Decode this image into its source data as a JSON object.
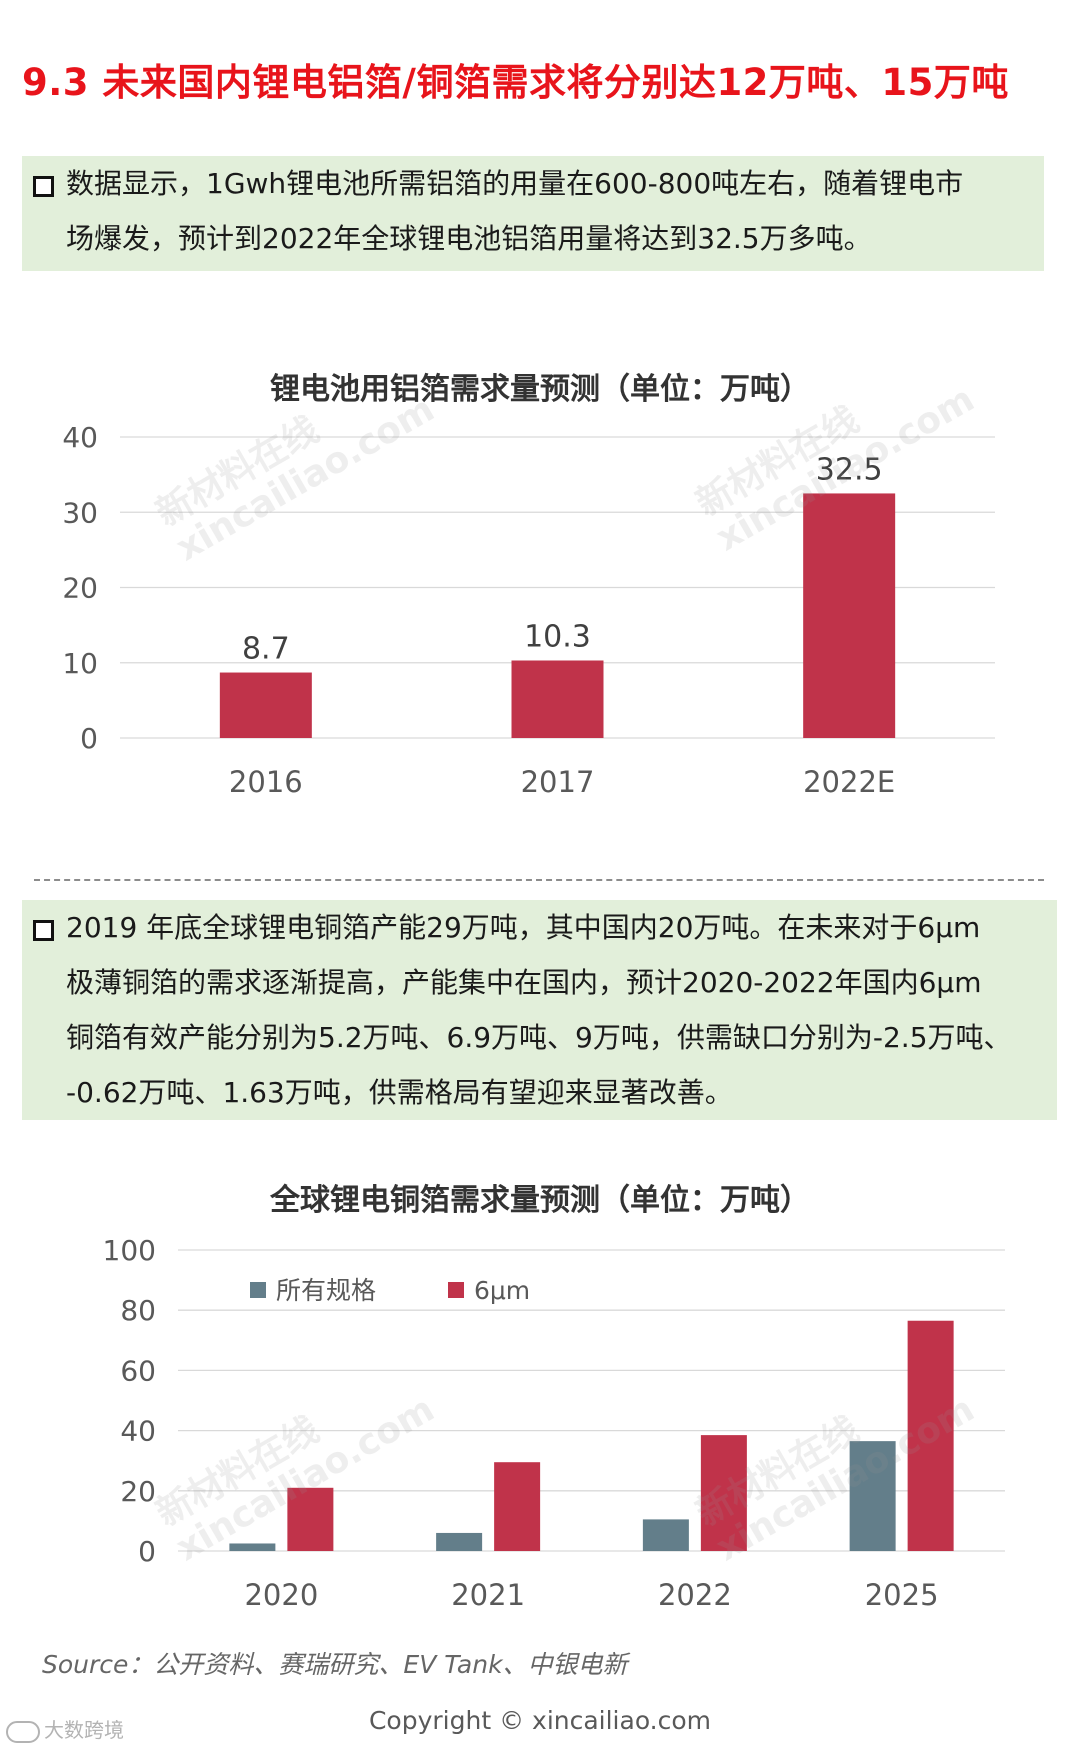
{
  "page_title": "9.3 未来国内锂电铝箔/铜箔需求将分别达12万吨、15万吨",
  "note1": {
    "lines": [
      "数据显示，1Gwh锂电池所需铝箔的用量在600-800吨左右，随着锂电市",
      "场爆发，预计到2022年全球锂电池铝箔用量将达到32.5万多吨。"
    ]
  },
  "note2": {
    "lines": [
      "2019 年底全球锂电铜箔产能29万吨，其中国内20万吨。在未来对于6μm",
      "极薄铜箔的需求逐渐提高，产能集中在国内，预计2020-2022年国内6μm",
      "铜箔有效产能分别为5.2万吨、6.9万吨、9万吨，供需缺口分别为-2.5万吨、",
      "-0.62万吨、1.63万吨，供需格局有望迎来显著改善。"
    ]
  },
  "watermark": {
    "line1": "新材料在线",
    "line2": "xincailiao.com"
  },
  "chart_data": [
    {
      "type": "bar",
      "title": "锂电池用铝箔需求量预测（单位：万吨）",
      "categories": [
        "2016",
        "2017",
        "2022E"
      ],
      "values": [
        8.7,
        10.3,
        32.5
      ],
      "data_labels": [
        "8.7",
        "10.3",
        "32.5"
      ],
      "ylim": [
        0,
        40
      ],
      "yticks": [
        0,
        10,
        20,
        30,
        40
      ],
      "grid": true,
      "legend": "none",
      "colors": {
        "bar": "#c0334a",
        "grid": "#d9d9d9",
        "tick": "#595959"
      }
    },
    {
      "type": "bar",
      "title": "全球锂电铜箔需求量预测（单位：万吨）",
      "categories": [
        "2020",
        "2021",
        "2022",
        "2025"
      ],
      "series": [
        {
          "name": "所有规格",
          "values": [
            2.5,
            6,
            10.5,
            36.5
          ],
          "color": "#637e8a"
        },
        {
          "name": "6μm",
          "values": [
            21,
            29.5,
            38.5,
            76.5
          ],
          "color": "#c0334a"
        }
      ],
      "ylim": [
        0,
        100
      ],
      "yticks": [
        0,
        20,
        40,
        60,
        80,
        100
      ],
      "grid": true,
      "legend": "top-left",
      "colors": {
        "grid": "#d9d9d9",
        "tick": "#595959"
      }
    }
  ],
  "footer": {
    "source": "Source：公开资料、赛瑞研究、EV Tank、中银电新",
    "copyright": "Copyright © xincailiao.com",
    "brand": "大数跨境"
  }
}
